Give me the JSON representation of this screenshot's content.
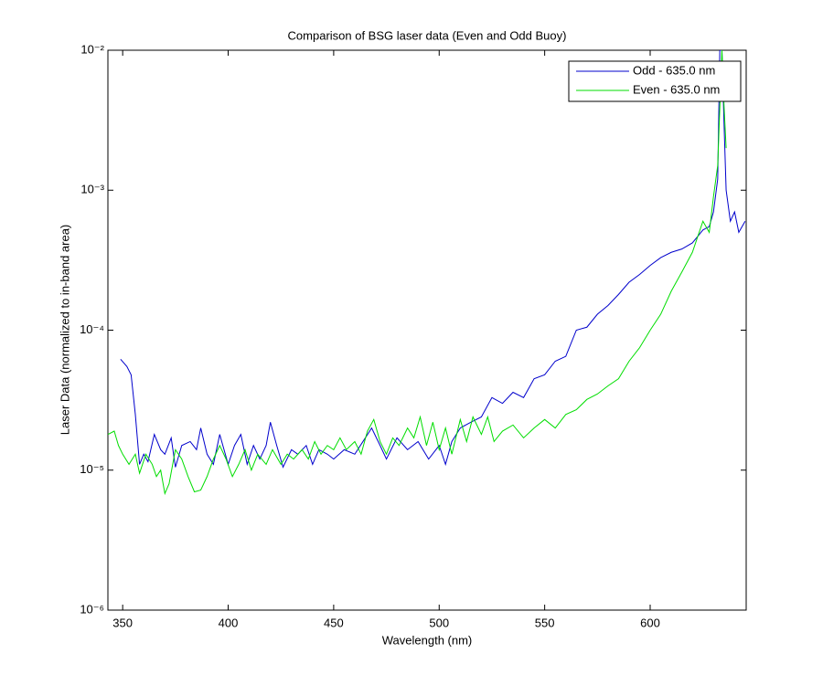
{
  "chart_data": {
    "type": "line",
    "title": "Comparison of BSG laser data (Even and Odd Buoy)",
    "x_label": "Wavelength (nm)",
    "y_label": "Laser Data (normalized to in-band area)",
    "log_y": true,
    "grid": false,
    "legend": "upper right",
    "xlim": [
      343,
      645.5
    ],
    "xticks": [
      350,
      400,
      450,
      500,
      550,
      600
    ],
    "ylim": [
      1e-06,
      0.01
    ],
    "yticks": [
      {
        "value": 1e-06,
        "label": "10⁻⁶"
      },
      {
        "value": 1e-05,
        "label": "10⁻⁵"
      },
      {
        "value": 0.0001,
        "label": "10⁻⁴"
      },
      {
        "value": 0.001,
        "label": "10⁻³"
      },
      {
        "value": 0.01,
        "label": "10⁻²"
      }
    ],
    "series": [
      {
        "name": "Odd - 635.0 nm",
        "color": "#0000cc",
        "x": [
          349,
          352,
          354,
          356,
          358,
          360,
          362,
          365,
          368,
          370,
          373,
          375,
          378,
          382,
          385,
          387,
          390,
          393,
          396,
          400,
          403,
          406,
          409,
          412,
          415,
          418,
          420,
          423,
          426,
          430,
          433,
          437,
          440,
          443,
          447,
          450,
          455,
          460,
          465,
          468,
          472,
          475,
          480,
          485,
          490,
          495,
          500,
          503,
          506,
          510,
          515,
          520,
          525,
          530,
          535,
          540,
          545,
          550,
          555,
          560,
          565,
          570,
          575,
          580,
          585,
          590,
          595,
          600,
          605,
          610,
          615,
          620,
          625,
          628,
          630,
          632,
          633,
          634,
          635,
          636,
          638,
          640,
          642,
          645
        ],
        "values": [
          6.2e-05,
          5.5e-05,
          4.8e-05,
          2.5e-05,
          1.1e-05,
          1.3e-05,
          1.15e-05,
          1.8e-05,
          1.4e-05,
          1.3e-05,
          1.7e-05,
          1.05e-05,
          1.5e-05,
          1.6e-05,
          1.4e-05,
          2e-05,
          1.3e-05,
          1.1e-05,
          1.8e-05,
          1.1e-05,
          1.5e-05,
          1.8e-05,
          1.1e-05,
          1.5e-05,
          1.2e-05,
          1.5e-05,
          2.2e-05,
          1.5e-05,
          1.05e-05,
          1.4e-05,
          1.3e-05,
          1.5e-05,
          1.1e-05,
          1.4e-05,
          1.3e-05,
          1.2e-05,
          1.4e-05,
          1.3e-05,
          1.7e-05,
          2e-05,
          1.5e-05,
          1.2e-05,
          1.7e-05,
          1.4e-05,
          1.6e-05,
          1.2e-05,
          1.5e-05,
          1.1e-05,
          1.6e-05,
          2e-05,
          2.2e-05,
          2.4e-05,
          3.3e-05,
          3e-05,
          3.6e-05,
          3.3e-05,
          4.5e-05,
          4.8e-05,
          6e-05,
          6.5e-05,
          0.0001,
          0.000105,
          0.00013,
          0.00015,
          0.00018,
          0.00022,
          0.00025,
          0.00029,
          0.00033,
          0.00036,
          0.00038,
          0.00042,
          0.00052,
          0.00055,
          0.0007,
          0.0012,
          0.01,
          0.01,
          0.003,
          0.001,
          0.0006,
          0.0007,
          0.0005,
          0.0006
        ]
      },
      {
        "name": "Even - 635.0 nm",
        "color": "#00dd00",
        "x": [
          343,
          346,
          348,
          350,
          353,
          356,
          358,
          361,
          364,
          366,
          368,
          370,
          372,
          375,
          378,
          381,
          384,
          387,
          390,
          393,
          396,
          399,
          402,
          405,
          408,
          411,
          414,
          418,
          421,
          425,
          428,
          431,
          435,
          438,
          441,
          444,
          447,
          450,
          453,
          456,
          460,
          463,
          466,
          469,
          472,
          475,
          478,
          481,
          485,
          488,
          491,
          494,
          497,
          500,
          503,
          506,
          510,
          513,
          516,
          520,
          523,
          526,
          530,
          535,
          540,
          545,
          550,
          555,
          560,
          565,
          570,
          575,
          580,
          585,
          590,
          595,
          600,
          605,
          610,
          615,
          620,
          625,
          628,
          630,
          632,
          634,
          635,
          636
        ],
        "values": [
          1.8e-05,
          1.9e-05,
          1.5e-05,
          1.3e-05,
          1.1e-05,
          1.3e-05,
          9.5e-06,
          1.3e-05,
          1.1e-05,
          9e-06,
          1e-05,
          6.8e-06,
          8e-06,
          1.4e-05,
          1.2e-05,
          9e-06,
          7e-06,
          7.2e-06,
          9e-06,
          1.2e-05,
          1.5e-05,
          1.2e-05,
          9e-06,
          1.1e-05,
          1.4e-05,
          1e-05,
          1.3e-05,
          1.1e-05,
          1.4e-05,
          1.1e-05,
          1.3e-05,
          1.2e-05,
          1.4e-05,
          1.2e-05,
          1.6e-05,
          1.3e-05,
          1.5e-05,
          1.4e-05,
          1.7e-05,
          1.4e-05,
          1.6e-05,
          1.3e-05,
          1.9e-05,
          2.3e-05,
          1.6e-05,
          1.3e-05,
          1.7e-05,
          1.5e-05,
          2e-05,
          1.7e-05,
          2.4e-05,
          1.5e-05,
          2.2e-05,
          1.4e-05,
          2e-05,
          1.3e-05,
          2.3e-05,
          1.6e-05,
          2.4e-05,
          1.8e-05,
          2.4e-05,
          1.6e-05,
          1.9e-05,
          2.1e-05,
          1.7e-05,
          2e-05,
          2.3e-05,
          2e-05,
          2.5e-05,
          2.7e-05,
          3.2e-05,
          3.5e-05,
          4e-05,
          4.5e-05,
          6e-05,
          7.5e-05,
          0.0001,
          0.00013,
          0.00019,
          0.00026,
          0.00036,
          0.0006,
          0.0005,
          0.0009,
          0.0015,
          0.01,
          0.004,
          0.002
        ]
      }
    ]
  }
}
